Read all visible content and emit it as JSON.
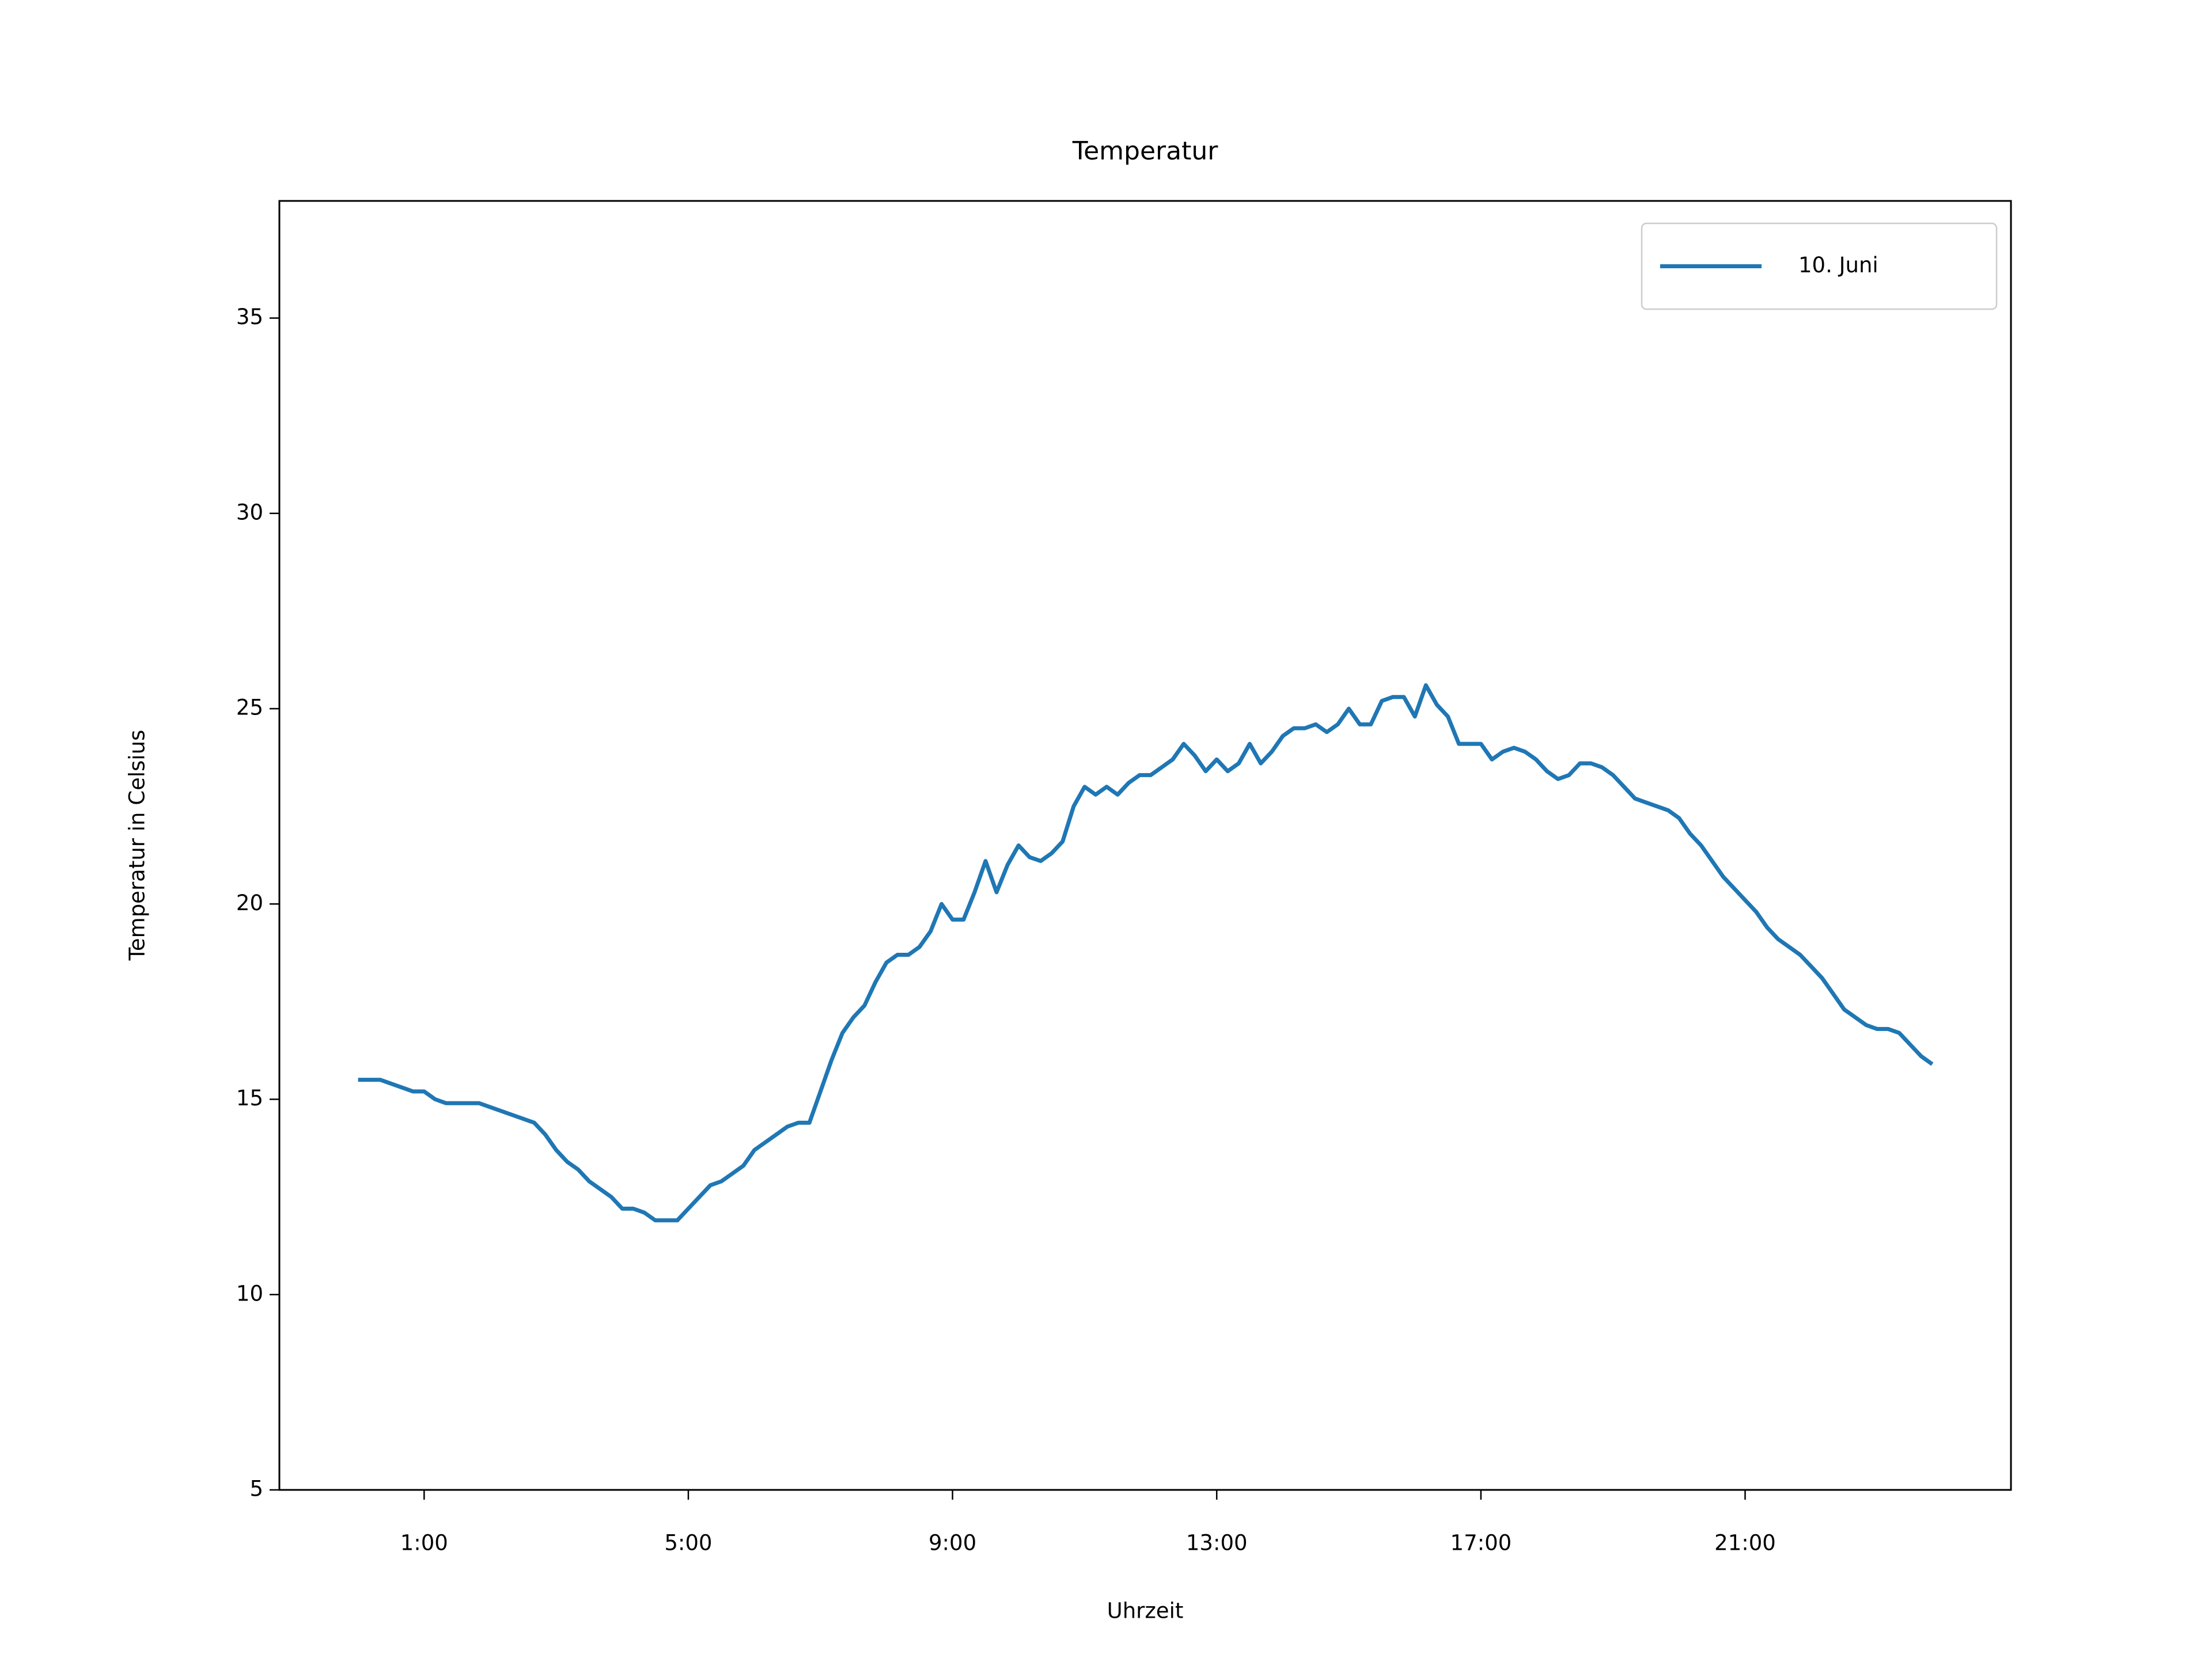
{
  "chart_data": {
    "type": "line",
    "title": "Temperatur",
    "xlabel": "Uhrzeit",
    "ylabel": "Temperatur in Celsius",
    "x": [
      0,
      20,
      50,
      60,
      70,
      80,
      110,
      160,
      170,
      180,
      190,
      200,
      210,
      230,
      240,
      250,
      260,
      270,
      290,
      300,
      320,
      330,
      350,
      360,
      380,
      390,
      400,
      410,
      420,
      430,
      440,
      450,
      460,
      470,
      480,
      490,
      500,
      510,
      520,
      530,
      540,
      550,
      560,
      570,
      580,
      590,
      600,
      610,
      620,
      630,
      640,
      650,
      660,
      670,
      680,
      690,
      700,
      710,
      720,
      730,
      740,
      750,
      760,
      770,
      780,
      790,
      800,
      810,
      820,
      830,
      840,
      850,
      860,
      870,
      880,
      890,
      900,
      910,
      920,
      930,
      940,
      950,
      960,
      970,
      980,
      990,
      1000,
      1010,
      1020,
      1030,
      1040,
      1050,
      1060,
      1070,
      1080,
      1090,
      1100,
      1110,
      1120,
      1130,
      1140,
      1150,
      1160,
      1170,
      1180,
      1190,
      1200,
      1210,
      1220,
      1230,
      1240,
      1250,
      1260,
      1270,
      1280,
      1290,
      1300,
      1310,
      1320,
      1330,
      1340,
      1350,
      1360,
      1370,
      1380,
      1390,
      1400,
      1410,
      1420,
      1430
    ],
    "series": [
      {
        "name": "10. Juni",
        "color": "#1f77b4",
        "values": [
          15.5,
          15.5,
          15.2,
          15.2,
          15.0,
          14.9,
          14.9,
          14.4,
          14.1,
          13.7,
          13.4,
          13.2,
          12.9,
          12.5,
          12.2,
          12.2,
          12.1,
          11.9,
          11.9,
          12.2,
          12.8,
          12.9,
          13.3,
          13.7,
          14.1,
          14.3,
          14.4,
          14.4,
          15.2,
          16.0,
          16.7,
          17.1,
          17.4,
          18.0,
          18.5,
          18.7,
          18.7,
          18.9,
          19.3,
          20.0,
          19.6,
          19.6,
          20.3,
          21.1,
          20.3,
          21.0,
          21.5,
          21.2,
          21.1,
          21.3,
          21.6,
          22.5,
          23.0,
          22.8,
          23.0,
          22.8,
          23.1,
          23.3,
          23.3,
          23.5,
          23.7,
          24.1,
          23.8,
          23.4,
          23.7,
          23.4,
          23.6,
          24.1,
          23.6,
          23.9,
          24.3,
          24.5,
          24.5,
          24.6,
          24.4,
          24.6,
          25.0,
          24.6,
          24.6,
          25.2,
          25.3,
          25.3,
          24.8,
          25.6,
          25.1,
          24.8,
          24.1,
          24.1,
          24.1,
          23.7,
          23.9,
          24.0,
          23.9,
          23.7,
          23.4,
          23.2,
          23.3,
          23.6,
          23.6,
          23.5,
          23.3,
          23.0,
          22.7,
          22.6,
          22.5,
          22.4,
          22.2,
          21.8,
          21.5,
          21.1,
          20.7,
          20.4,
          20.1,
          19.8,
          19.4,
          19.1,
          18.9,
          18.7,
          18.4,
          18.1,
          17.7,
          17.3,
          17.1,
          16.9,
          16.8,
          16.8,
          16.7,
          16.4,
          16.1,
          15.9
        ]
      }
    ],
    "xlim": [
      -71.5,
      1501.5
    ],
    "xticks": [
      {
        "value": 60,
        "label": "1:00"
      },
      {
        "value": 300,
        "label": "5:00"
      },
      {
        "value": 540,
        "label": "9:00"
      },
      {
        "value": 780,
        "label": "13:00"
      },
      {
        "value": 1020,
        "label": "17:00"
      },
      {
        "value": 1260,
        "label": "21:00"
      }
    ],
    "ylim": [
      5,
      38
    ],
    "yticks": [
      5,
      10,
      15,
      20,
      25,
      30,
      35
    ],
    "grid": false,
    "legend": "upper right"
  }
}
